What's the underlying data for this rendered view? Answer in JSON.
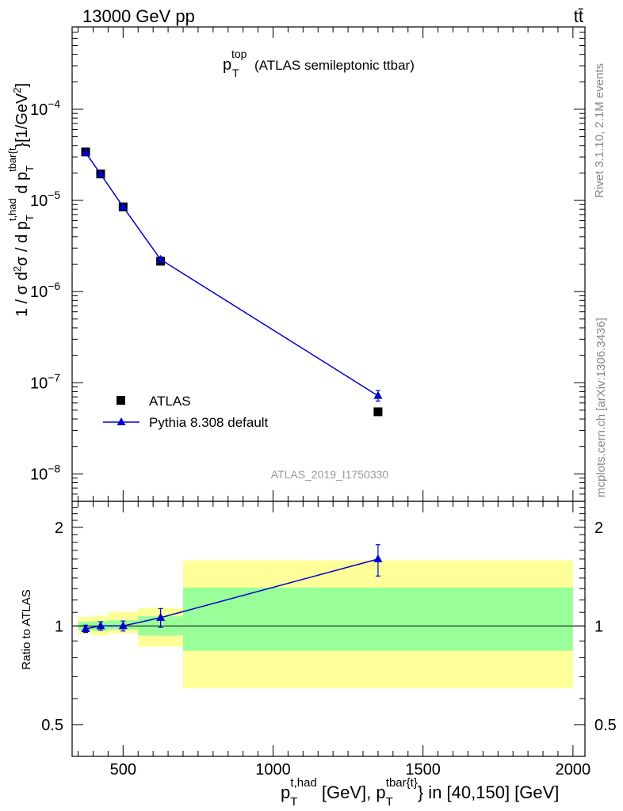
{
  "header": {
    "energy_label": "13000 GeV pp",
    "process_label": "tt̄"
  },
  "side_labels": {
    "rivet": "Rivet 3.1.10,  2.1M events",
    "mcplots": "mcplots.cern.ch [arXiv:1306.3436]"
  },
  "chart_data": [
    {
      "type": "scatter",
      "title_main": "p",
      "title_sub": "T",
      "title_sup": "top",
      "title_rest": "(ATLAS semileptonic ttbar)",
      "watermark": "ATLAS_2019_I1750330",
      "y_scale": "log",
      "ylim": [
        5e-09,
        0.0008
      ],
      "xlim": [
        330,
        2040
      ],
      "ylabel": "1 / σ d²σ / d p_T^{t,had} d p_T^{tbar{t}} [1/GeV²]",
      "y_ticks": [
        {
          "value": 1e-08,
          "base": "10",
          "exp": "−8"
        },
        {
          "value": 1e-07,
          "base": "10",
          "exp": "−7"
        },
        {
          "value": 1e-06,
          "base": "10",
          "exp": "−6"
        },
        {
          "value": 1e-05,
          "base": "10",
          "exp": "−5"
        },
        {
          "value": 0.0001,
          "base": "10",
          "exp": "−4"
        }
      ],
      "legend": {
        "position": "bottom-left",
        "atlas": "ATLAS",
        "pythia": "Pythia 8.308 default"
      },
      "series": [
        {
          "name": "ATLAS",
          "marker": "square",
          "color": "#000000",
          "x": [
            375,
            425,
            500,
            625,
            1350
          ],
          "y": [
            3.4e-05,
            1.95e-05,
            8.5e-06,
            2.15e-06,
            4.8e-08
          ]
        },
        {
          "name": "Pythia 8.308 default",
          "marker": "triangle",
          "color": "#0000cc",
          "x": [
            375,
            425,
            500,
            625,
            1350
          ],
          "y": [
            3.35e-05,
            1.95e-05,
            8.5e-06,
            2.25e-06,
            7.2e-08
          ],
          "err_hi": [
            8e-07,
            5e-07,
            3e-07,
            1.5e-07,
            1e-08
          ],
          "err_lo": [
            8e-07,
            5e-07,
            3e-07,
            1.5e-07,
            9e-09
          ]
        }
      ]
    },
    {
      "type": "scatter",
      "ylabel": "Ratio to ATLAS",
      "xlabel_main": "p",
      "xlabel_sub1": "T",
      "xlabel_sup1": "t,had",
      "xlabel_mid": " [GeV], p",
      "xlabel_sub2": "T",
      "xlabel_sup2": "tbar{t}",
      "xlabel_end": "} in [40,150] [GeV]",
      "y_scale": "log",
      "ylim": [
        0.4,
        2.4
      ],
      "xlim": [
        330,
        2040
      ],
      "y_ticks": [
        {
          "value": 0.5,
          "label": "0.5"
        },
        {
          "value": 1,
          "label": "1"
        },
        {
          "value": 2,
          "label": "2"
        }
      ],
      "x_ticks": [
        {
          "value": 500,
          "label": "500"
        },
        {
          "value": 1000,
          "label": "1000"
        },
        {
          "value": 1500,
          "label": "1500"
        },
        {
          "value": 2000,
          "label": "2000"
        }
      ],
      "bands": [
        {
          "x0": 350,
          "x1": 400,
          "yellow": [
            0.945,
            1.065
          ],
          "green": [
            0.97,
            1.03
          ]
        },
        {
          "x0": 400,
          "x1": 450,
          "yellow": [
            0.935,
            1.075
          ],
          "green": [
            0.965,
            1.035
          ]
        },
        {
          "x0": 450,
          "x1": 550,
          "yellow": [
            0.95,
            1.105
          ],
          "green": [
            0.975,
            1.04
          ]
        },
        {
          "x0": 550,
          "x1": 700,
          "yellow": [
            0.865,
            1.135
          ],
          "green": [
            0.935,
            1.07
          ]
        },
        {
          "x0": 700,
          "x1": 2000,
          "yellow": [
            0.645,
            1.585
          ],
          "green": [
            0.84,
            1.31
          ]
        }
      ],
      "series": [
        {
          "name": "Pythia 8.308 default",
          "color": "#0000cc",
          "x": [
            375,
            425,
            500,
            625,
            1350
          ],
          "y": [
            0.98,
            1.0,
            1.0,
            1.06,
            1.6
          ],
          "err_hi": [
            0.025,
            0.03,
            0.035,
            0.07,
            0.17
          ],
          "err_lo": [
            0.025,
            0.03,
            0.035,
            0.07,
            0.18
          ]
        }
      ]
    }
  ]
}
